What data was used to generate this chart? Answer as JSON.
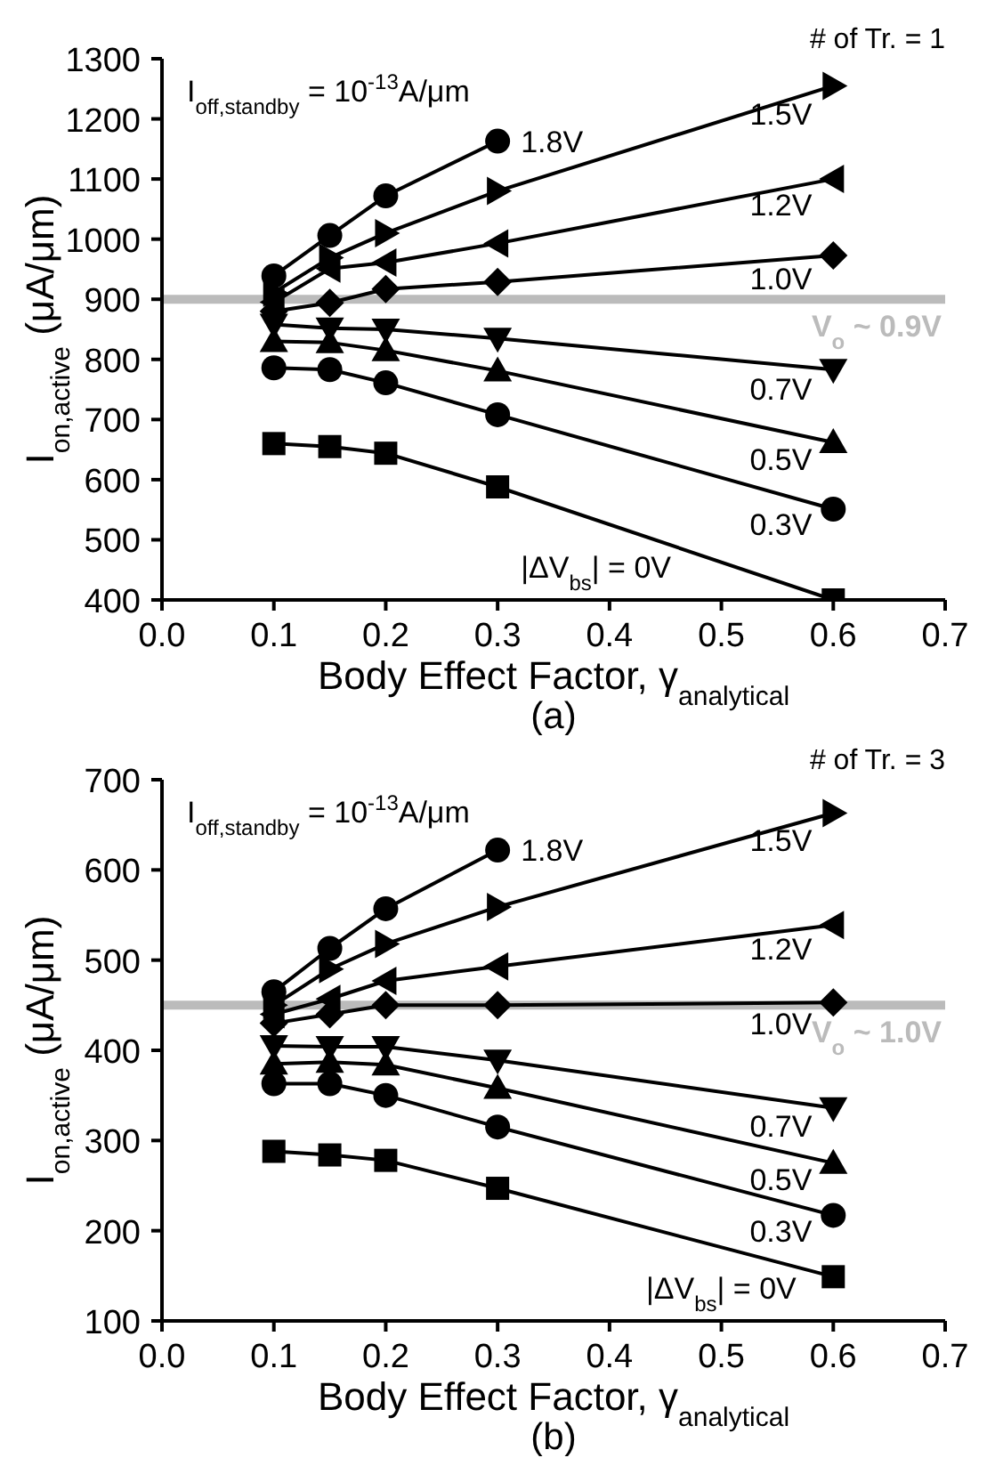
{
  "chart_data": [
    {
      "type": "line",
      "title": "(a)",
      "xlabel": "Body Effect Factor, γ$_{analytical}$",
      "ylabel": "I$_{on,active}$ (μA/μm)",
      "annotations": [
        "I$_{off,standby}$ = 10$^{-13}$A/μm",
        "# of Tr. = 1"
      ],
      "x": [
        0.1,
        0.15,
        0.2,
        0.3,
        0.6
      ],
      "xlim": [
        0.0,
        0.7
      ],
      "xticks": [
        {
          "value": 0.0,
          "label": "0.0"
        },
        0.1,
        0.2,
        0.3,
        0.4,
        0.5,
        0.6,
        0.7
      ],
      "ylim": [
        400,
        1300
      ],
      "yticks": [
        400,
        500,
        600,
        700,
        800,
        900,
        1000,
        1100,
        1200,
        1300
      ],
      "ref_lines": [
        {
          "axis": "y",
          "value": 900,
          "label": "V$_{o}$ ~ 0.9V",
          "color": "#bbbbbb"
        }
      ],
      "series": [
        {
          "name": "1.8V",
          "color": "#000000",
          "marker": "circle",
          "values": [
            939,
            1006,
            1072,
            1163,
            null
          ]
        },
        {
          "name": "1.5V",
          "color": "#000000",
          "marker": "triangle-right",
          "values": [
            911,
            969,
            1010,
            1080,
            1255
          ]
        },
        {
          "name": "1.2V",
          "color": "#000000",
          "marker": "triangle-left",
          "values": [
            895,
            951,
            961,
            993,
            1100
          ]
        },
        {
          "name": "1.0V",
          "color": "#000000",
          "marker": "diamond",
          "values": [
            880,
            894,
            917,
            929,
            973
          ]
        },
        {
          "name": "0.7V",
          "color": "#000000",
          "marker": "triangle-down",
          "values": [
            858,
            852,
            850,
            835,
            783
          ]
        },
        {
          "name": "0.5V",
          "color": "#000000",
          "marker": "triangle",
          "values": [
            830,
            828,
            815,
            781,
            662
          ]
        },
        {
          "name": "0.3V",
          "color": "#000000",
          "marker": "circle",
          "values": [
            786,
            783,
            761,
            708,
            551
          ]
        },
        {
          "name": "|ΔV$_{bs}$| = 0V",
          "color": "#000000",
          "marker": "square",
          "values": [
            660,
            655,
            644,
            588,
            400
          ]
        }
      ]
    },
    {
      "type": "line",
      "title": "(b)",
      "xlabel": "Body Effect Factor, γ$_{analytical}$",
      "ylabel": "I$_{on,active}$ (μA/μm)",
      "annotations": [
        "I$_{off,standby}$ = 10$^{-13}$A/μm",
        "# of Tr. = 3"
      ],
      "x": [
        0.1,
        0.15,
        0.2,
        0.3,
        0.6
      ],
      "xlim": [
        0.0,
        0.7
      ],
      "xticks": [
        {
          "value": 0.0,
          "label": "0.0"
        },
        0.1,
        0.2,
        0.3,
        0.4,
        0.5,
        0.6,
        0.7
      ],
      "ylim": [
        100,
        700
      ],
      "yticks": [
        100,
        200,
        300,
        400,
        500,
        600,
        700
      ],
      "ref_lines": [
        {
          "axis": "y",
          "value": 450,
          "label": "V$_{o}$ ~ 1.0V",
          "color": "#bbbbbb"
        }
      ],
      "series": [
        {
          "name": "1.8V",
          "color": "#000000",
          "marker": "circle",
          "values": [
            465,
            513,
            557,
            622,
            null
          ]
        },
        {
          "name": "1.5V",
          "color": "#000000",
          "marker": "triangle-right",
          "values": [
            450,
            490,
            518,
            559,
            663
          ]
        },
        {
          "name": "1.2V",
          "color": "#000000",
          "marker": "triangle-left",
          "values": [
            440,
            457,
            477,
            493,
            539
          ]
        },
        {
          "name": "1.0V",
          "color": "#000000",
          "marker": "diamond",
          "values": [
            430,
            440,
            450,
            450,
            453
          ]
        },
        {
          "name": "0.7V",
          "color": "#000000",
          "marker": "triangle-down",
          "values": [
            405,
            404,
            404,
            389,
            336
          ]
        },
        {
          "name": "0.5V",
          "color": "#000000",
          "marker": "triangle",
          "values": [
            385,
            387,
            384,
            358,
            275
          ]
        },
        {
          "name": "0.3V",
          "color": "#000000",
          "marker": "circle",
          "values": [
            363,
            363,
            350,
            315,
            217
          ]
        },
        {
          "name": "|ΔV$_{bs}$| = 0V",
          "color": "#000000",
          "marker": "square",
          "values": [
            288,
            284,
            278,
            247,
            149
          ]
        }
      ]
    }
  ]
}
